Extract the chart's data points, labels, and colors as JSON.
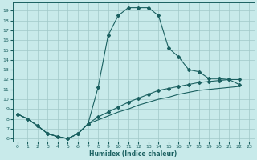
{
  "xlabel": "Humidex (Indice chaleur)",
  "ylabel": "",
  "bg_color": "#c8eaea",
  "grid_color": "#a0c8c8",
  "line_color": "#1a6060",
  "xlim": [
    -0.5,
    23.5
  ],
  "ylim": [
    5.7,
    19.8
  ],
  "xticks": [
    0,
    1,
    2,
    3,
    4,
    5,
    6,
    7,
    8,
    9,
    10,
    11,
    12,
    13,
    14,
    15,
    16,
    17,
    18,
    19,
    20,
    21,
    22,
    23
  ],
  "yticks": [
    6,
    7,
    8,
    9,
    10,
    11,
    12,
    13,
    14,
    15,
    16,
    17,
    18,
    19
  ],
  "curve1_x": [
    0,
    1,
    2,
    3,
    4,
    5,
    6,
    7,
    8,
    9,
    10,
    11,
    12,
    13,
    14,
    15,
    16,
    17,
    18,
    19,
    20,
    21,
    22
  ],
  "curve1_y": [
    8.5,
    8.0,
    7.3,
    6.5,
    6.2,
    6.0,
    6.5,
    7.5,
    11.2,
    16.5,
    18.5,
    19.3,
    19.3,
    19.3,
    18.5,
    15.2,
    14.3,
    13.0,
    12.8,
    12.1,
    12.1,
    12.0,
    11.5
  ],
  "curve2_x": [
    0,
    1,
    2,
    3,
    4,
    5,
    6,
    7,
    8,
    9,
    10,
    11,
    12,
    13,
    14,
    15,
    16,
    17,
    18,
    19,
    20,
    21,
    22
  ],
  "curve2_y": [
    8.5,
    8.0,
    7.3,
    6.5,
    6.2,
    6.0,
    6.5,
    7.5,
    8.2,
    8.7,
    9.2,
    9.7,
    10.1,
    10.5,
    10.9,
    11.1,
    11.3,
    11.5,
    11.7,
    11.8,
    11.9,
    12.0,
    12.0
  ],
  "curve3_x": [
    0,
    1,
    2,
    3,
    4,
    5,
    6,
    7,
    8,
    9,
    10,
    11,
    12,
    13,
    14,
    15,
    16,
    17,
    18,
    19,
    20,
    21,
    22
  ],
  "curve3_y": [
    8.5,
    8.0,
    7.3,
    6.5,
    6.2,
    6.0,
    6.5,
    7.5,
    7.9,
    8.3,
    8.7,
    9.0,
    9.4,
    9.7,
    10.0,
    10.2,
    10.5,
    10.7,
    10.9,
    11.0,
    11.1,
    11.2,
    11.3
  ]
}
